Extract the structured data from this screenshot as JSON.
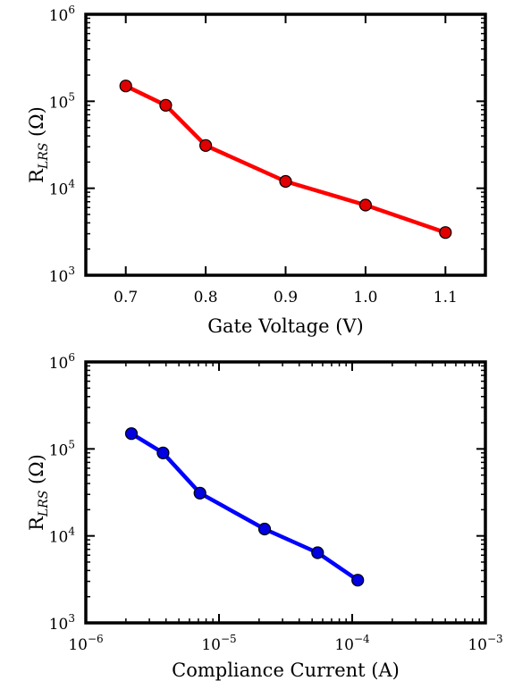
{
  "chart_data": [
    {
      "type": "line",
      "x_scale": "linear",
      "y_scale": "log",
      "xlabel": "Gate Voltage (V)",
      "ylabel": {
        "main": "R",
        "subscript": "LRS",
        "unit": "(Ω)"
      },
      "xlim": [
        0.65,
        1.15
      ],
      "ylim": [
        1000,
        1000000
      ],
      "x_ticks": [
        0.7,
        0.8,
        0.9,
        1.0,
        1.1
      ],
      "x_tick_labels": [
        "0.7",
        "0.8",
        "0.9",
        "1.0",
        "1.1"
      ],
      "y_ticks": [
        1000,
        10000,
        100000,
        1000000
      ],
      "y_tick_labels": [
        {
          "base": "10",
          "exp": "3"
        },
        {
          "base": "10",
          "exp": "4"
        },
        {
          "base": "10",
          "exp": "5"
        },
        {
          "base": "10",
          "exp": "6"
        }
      ],
      "grid": false,
      "series": [
        {
          "color": "#ff0000",
          "marker_color": "#e00000",
          "x": [
            0.7,
            0.75,
            0.8,
            0.9,
            1.0,
            1.1
          ],
          "y": [
            150000,
            90000,
            31000,
            12000,
            6400,
            3100
          ]
        }
      ]
    },
    {
      "type": "line",
      "x_scale": "log",
      "y_scale": "log",
      "xlabel": "Compliance Current (A)",
      "ylabel": {
        "main": "R",
        "subscript": "LRS",
        "unit": "(Ω)"
      },
      "xlim": [
        1e-06,
        0.001
      ],
      "ylim": [
        1000,
        1000000
      ],
      "x_ticks": [
        1e-06,
        1e-05,
        0.0001,
        0.001
      ],
      "x_tick_labels": [
        {
          "base": "10",
          "exp": "−6"
        },
        {
          "base": "10",
          "exp": "−5"
        },
        {
          "base": "10",
          "exp": "−4"
        },
        {
          "base": "10",
          "exp": "−3"
        }
      ],
      "y_ticks": [
        1000,
        10000,
        100000,
        1000000
      ],
      "y_tick_labels": [
        {
          "base": "10",
          "exp": "3"
        },
        {
          "base": "10",
          "exp": "4"
        },
        {
          "base": "10",
          "exp": "5"
        },
        {
          "base": "10",
          "exp": "6"
        }
      ],
      "grid": false,
      "series": [
        {
          "color": "#0000ff",
          "marker_color": "#0000e0",
          "x": [
            2.2e-06,
            3.8e-06,
            7.2e-06,
            2.2e-05,
            5.5e-05,
            0.00011
          ],
          "y": [
            150000,
            90000,
            31000,
            12000,
            6400,
            3100
          ]
        }
      ]
    }
  ]
}
